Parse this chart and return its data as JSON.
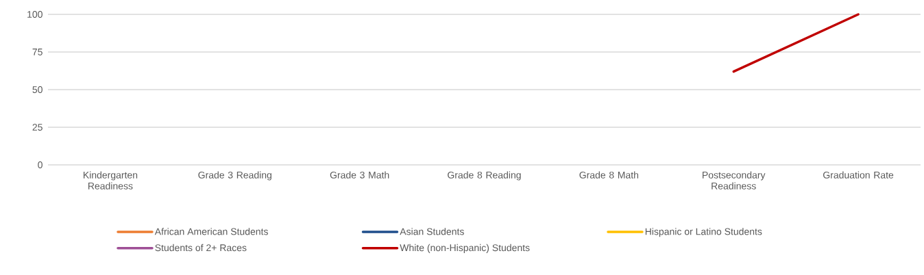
{
  "chart_data": {
    "type": "line",
    "categories": [
      "Kindergarten Readiness",
      "Grade 3 Reading",
      "Grade 3 Math",
      "Grade 8 Reading",
      "Grade 8 Math",
      "Postsecondary Readiness",
      "Graduation Rate"
    ],
    "series": [
      {
        "name": "African American Students",
        "color": "#ed7d31",
        "values": [
          null,
          null,
          null,
          null,
          null,
          null,
          null
        ]
      },
      {
        "name": "Asian Students",
        "color": "#1f4e8c",
        "values": [
          null,
          null,
          null,
          null,
          null,
          null,
          null
        ]
      },
      {
        "name": "Hispanic or Latino Students",
        "color": "#ffc000",
        "values": [
          null,
          null,
          null,
          null,
          null,
          null,
          null
        ]
      },
      {
        "name": "Students of 2+ Races",
        "color": "#9e4f96",
        "values": [
          null,
          null,
          null,
          null,
          null,
          null,
          null
        ]
      },
      {
        "name": "White (non-Hispanic) Students",
        "color": "#c00000",
        "values": [
          null,
          null,
          null,
          null,
          null,
          62,
          100
        ]
      }
    ],
    "ylim": [
      0,
      100
    ],
    "yticks": [
      0,
      25,
      50,
      75,
      100
    ],
    "grid": "y",
    "legend": "bottom"
  }
}
